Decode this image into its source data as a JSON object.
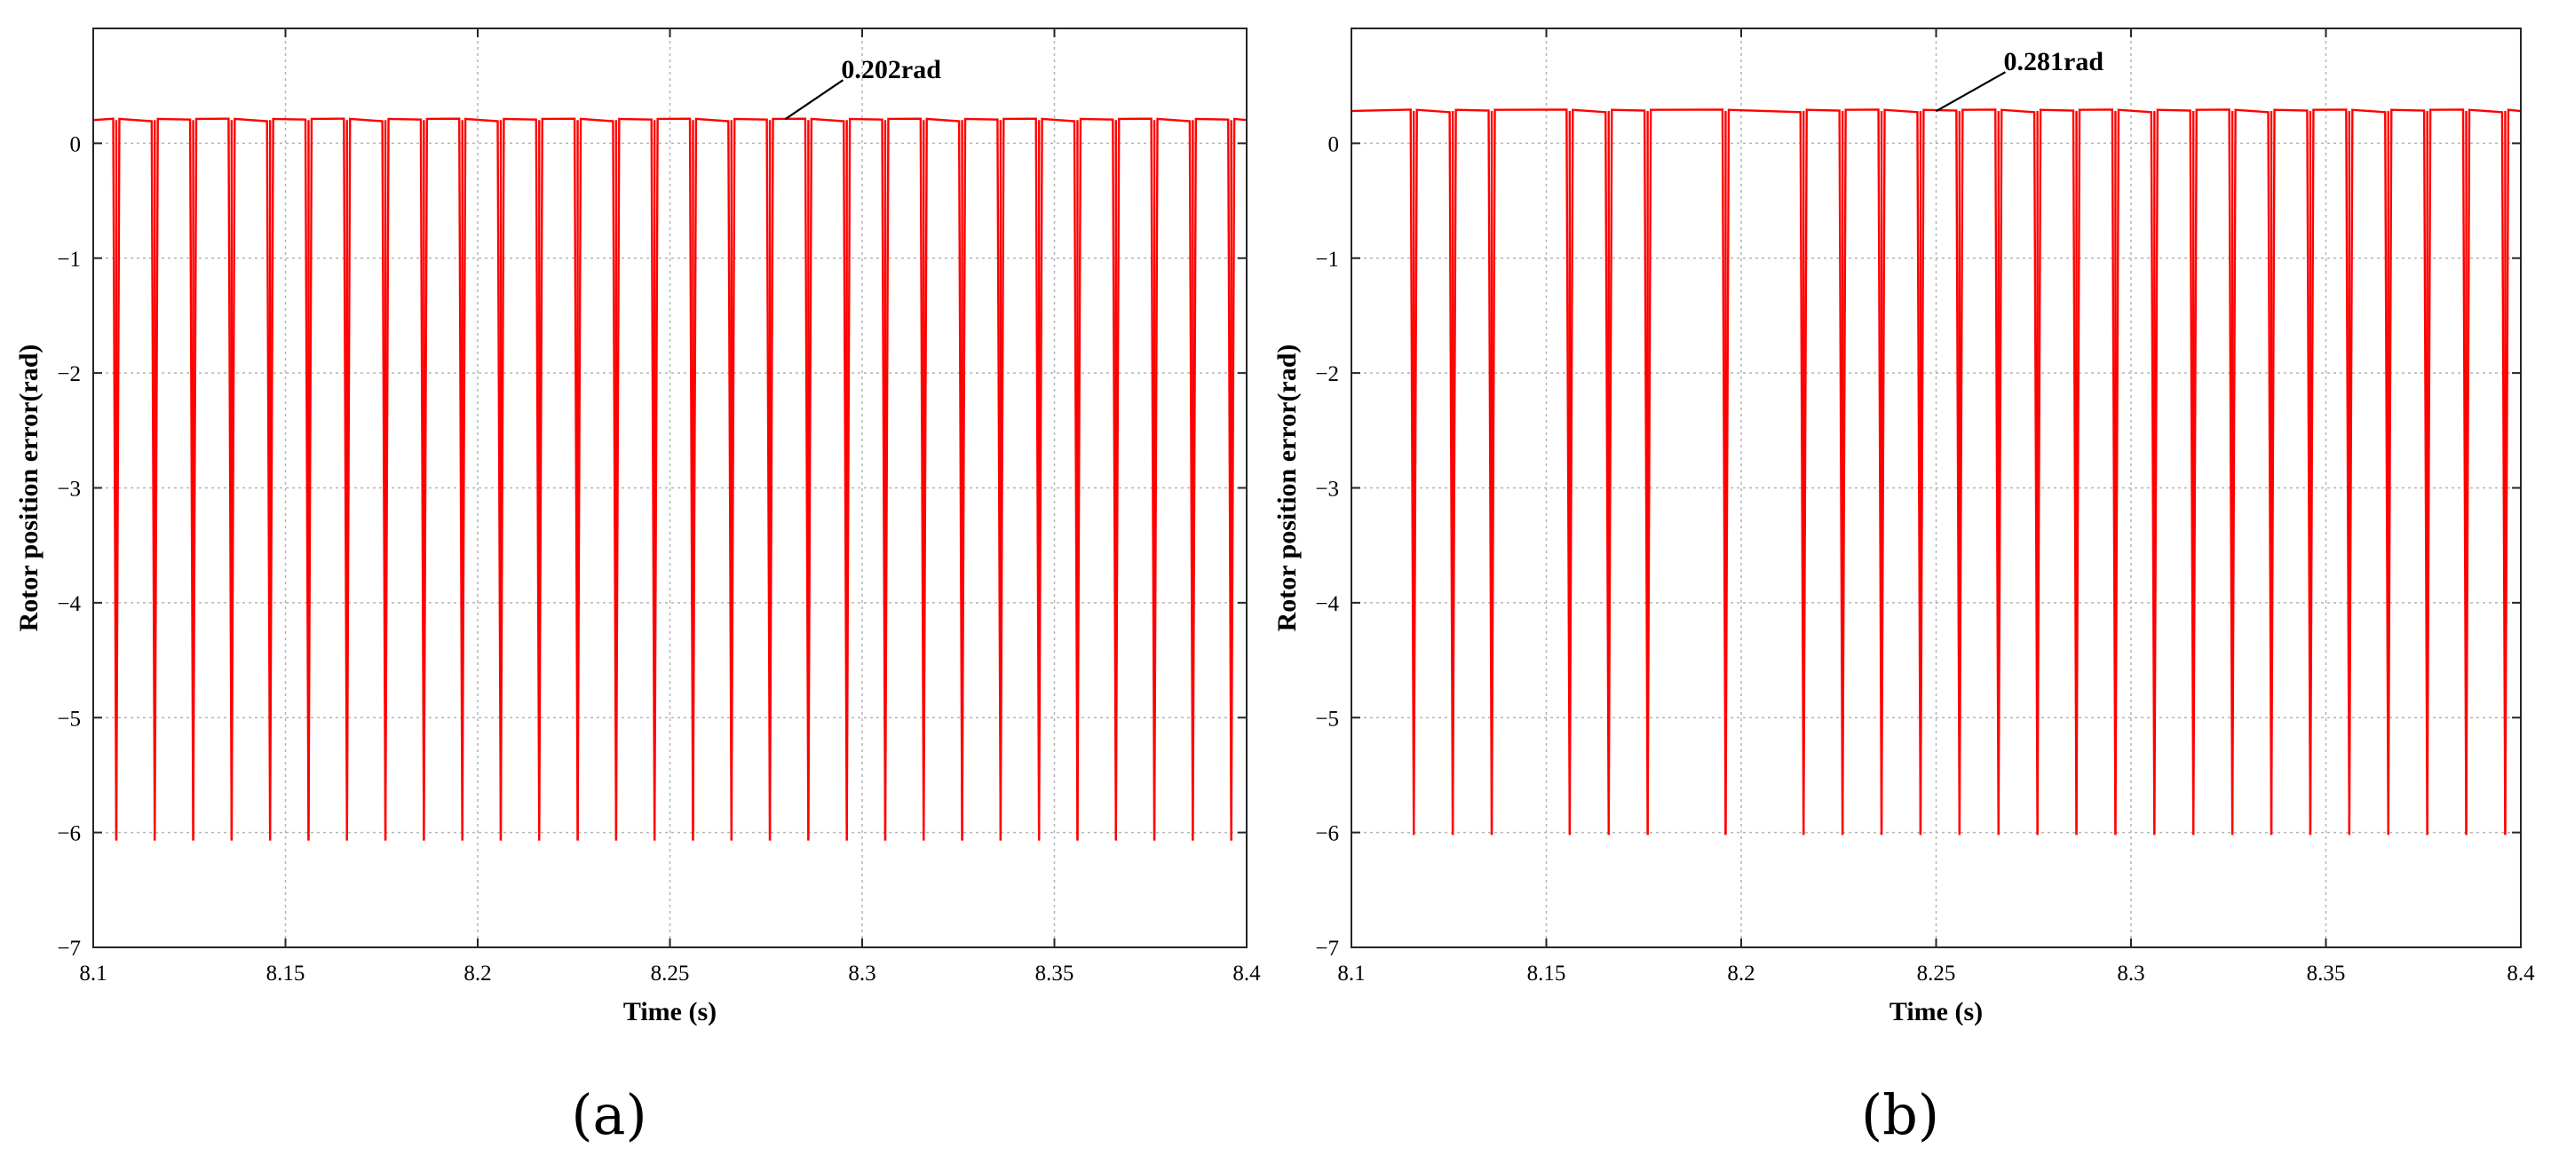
{
  "figure": {
    "panel_labels": [
      "(a)",
      "(b)"
    ]
  },
  "colors": {
    "series": "#ff0000",
    "axes": "#262626",
    "grid": "#b4b4b4"
  },
  "chart_data": [
    {
      "type": "line",
      "panel": "(a)",
      "xlabel": "Time (s)",
      "ylabel": "Rotor position error(rad)",
      "xlim": [
        8.1,
        8.4
      ],
      "ylim": [
        -7,
        1
      ],
      "xticks": [
        8.1,
        8.15,
        8.2,
        8.25,
        8.3,
        8.35,
        8.4
      ],
      "xtick_labels": [
        "8.1",
        "8.15",
        "8.2",
        "8.25",
        "8.3",
        "8.35",
        "8.4"
      ],
      "yticks": [
        0,
        -1,
        -2,
        -3,
        -4,
        -5,
        -6,
        -7
      ],
      "ytick_labels": [
        "0",
        "−1",
        "−2",
        "−3",
        "−4",
        "−5",
        "−6",
        "−7"
      ],
      "grid": true,
      "baseline": 0.202,
      "spike_min": -6.07,
      "spike_times": [
        8.106,
        8.116,
        8.126,
        8.136,
        8.146,
        8.156,
        8.166,
        8.176,
        8.186,
        8.196,
        8.206,
        8.216,
        8.226,
        8.236,
        8.246,
        8.256,
        8.266,
        8.276,
        8.286,
        8.296,
        8.306,
        8.316,
        8.326,
        8.336,
        8.346,
        8.356,
        8.366,
        8.376,
        8.386,
        8.396
      ],
      "annotation": {
        "text": "0.202rad",
        "x": 8.28,
        "y": 0.21
      }
    },
    {
      "type": "line",
      "panel": "(b)",
      "xlabel": "Time (s)",
      "ylabel": "Rotor position error(rad)",
      "xlim": [
        8.1,
        8.4
      ],
      "ylim": [
        -7,
        1
      ],
      "xticks": [
        8.1,
        8.15,
        8.2,
        8.25,
        8.3,
        8.35,
        8.4
      ],
      "xtick_labels": [
        "8.1",
        "8.15",
        "8.2",
        "8.25",
        "8.3",
        "8.35",
        "8.4"
      ],
      "yticks": [
        0,
        -1,
        -2,
        -3,
        -4,
        -5,
        -6,
        -7
      ],
      "ytick_labels": [
        "0",
        "−1",
        "−2",
        "−3",
        "−4",
        "−5",
        "−6",
        "−7"
      ],
      "grid": true,
      "baseline": 0.281,
      "spike_min": -6.02,
      "spike_times": [
        8.116,
        8.126,
        8.136,
        8.156,
        8.166,
        8.176,
        8.196,
        8.216,
        8.226,
        8.236,
        8.246,
        8.256,
        8.266,
        8.276,
        8.286,
        8.296,
        8.306,
        8.316,
        8.326,
        8.336,
        8.346,
        8.356,
        8.366,
        8.376,
        8.386,
        8.396
      ],
      "annotation": {
        "text": "0.281rad",
        "x": 8.25,
        "y": 0.28
      }
    }
  ]
}
